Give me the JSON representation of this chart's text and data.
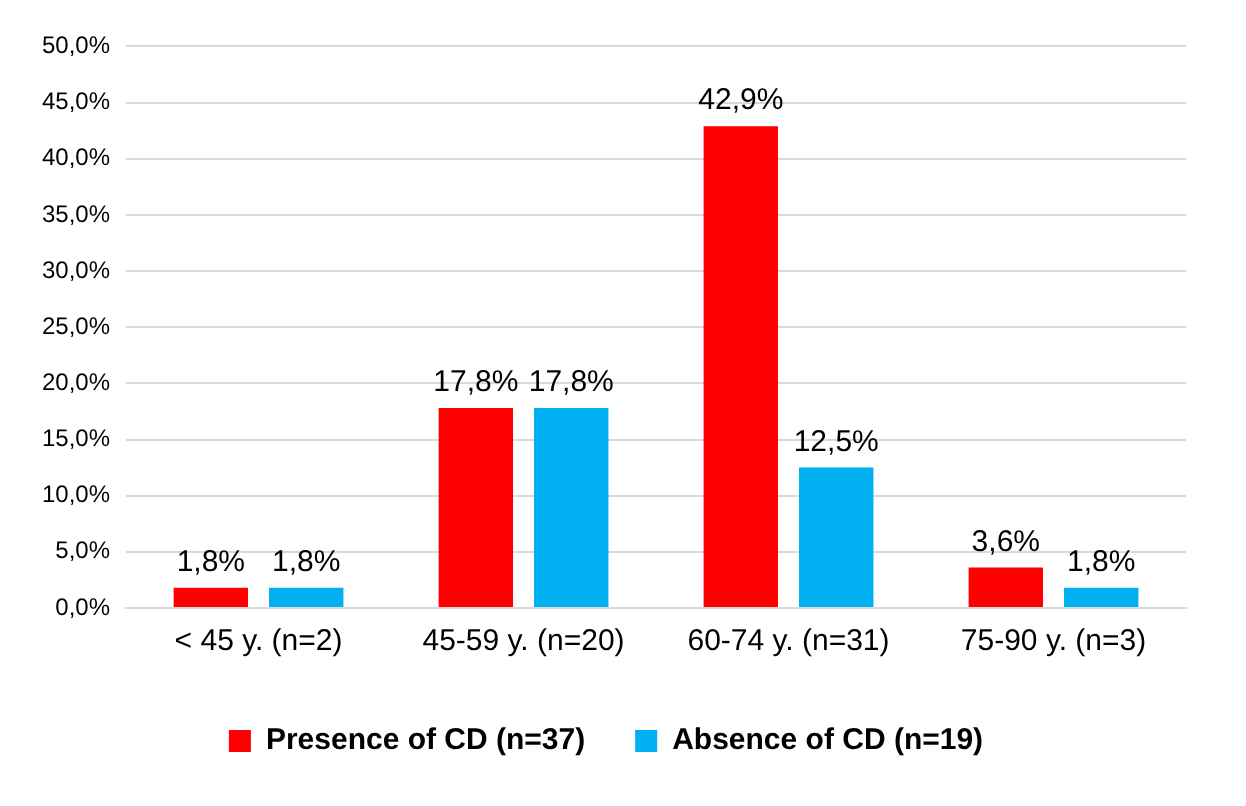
{
  "chart_data": {
    "type": "bar",
    "categories": [
      "< 45 y. (n=2)",
      "45-59 y. (n=20)",
      "60-74 y. (n=31)",
      "75-90 y. (n=3)"
    ],
    "series": [
      {
        "name": "Presence of CD (n=37)",
        "color": "#ff0000",
        "values": [
          1.8,
          17.8,
          42.9,
          3.6
        ],
        "value_labels": [
          "1,8%",
          "17,8%",
          "42,9%",
          "3,6%"
        ]
      },
      {
        "name": "Absence of CD (n=19)",
        "color": "#00b0f0",
        "values": [
          1.8,
          17.8,
          12.5,
          1.8
        ],
        "value_labels": [
          "1,8%",
          "17,8%",
          "12,5%",
          "1,8%"
        ]
      }
    ],
    "ylim": [
      0,
      50
    ],
    "yticks": [
      {
        "value": 0,
        "label": "0,0%"
      },
      {
        "value": 5,
        "label": "5,0%"
      },
      {
        "value": 10,
        "label": "10,0%"
      },
      {
        "value": 15,
        "label": "15,0%"
      },
      {
        "value": 20,
        "label": "20,0%"
      },
      {
        "value": 25,
        "label": "25,0%"
      },
      {
        "value": 30,
        "label": "30,0%"
      },
      {
        "value": 35,
        "label": "35,0%"
      },
      {
        "value": 40,
        "label": "40,0%"
      },
      {
        "value": 45,
        "label": "45,0%"
      },
      {
        "value": 50,
        "label": "50,0%"
      }
    ],
    "grid": "y",
    "legend": "bottom"
  }
}
